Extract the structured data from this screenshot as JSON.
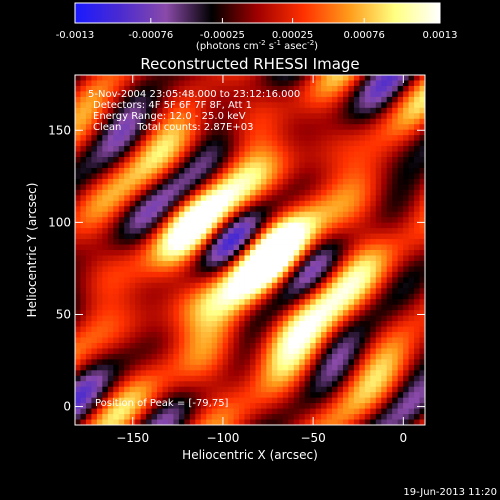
{
  "chart_data": {
    "type": "heatmap",
    "title": "Reconstructed RHESSI Image",
    "colorbar": {
      "colors": [
        "#1a1aff",
        "#4b2bd0",
        "#8a4aa8",
        "#000000",
        "#a00000",
        "#ff3000",
        "#ff9a1a",
        "#ffff80",
        "#ffffff"
      ],
      "ticks": [
        "-0.0013",
        "-0.00076",
        "-0.00025",
        "0.00025",
        "0.00076",
        "0.0013"
      ],
      "range": [
        -0.0013,
        0.0013
      ],
      "label_main": "(photons cm",
      "label_exp1": "-2",
      "label_mid": " s",
      "label_exp2": "-1",
      "label_mid2": " asec",
      "label_exp3": "-2",
      "label_end": ")"
    },
    "annotations": [
      "5-Nov-2004 23:05:48.000 to 23:12:16.000",
      "Detectors: 4F 5F 6F 7F 8F, Att 1",
      "Energy Range: 12.0 - 25.0 keV",
      "Clean     Total counts: 2.87E+03"
    ],
    "peak_label": "Position of Peak = [-79,75]",
    "xlabel": "Heliocentric X (arcsec)",
    "ylabel": "Heliocentric Y (arcsec)",
    "xlim": [
      -182,
      12
    ],
    "ylim": [
      -10,
      180
    ],
    "xticks": [
      -150,
      -100,
      -50,
      0
    ],
    "yticks": [
      0,
      50,
      100,
      150
    ],
    "peak": [
      -79,
      75
    ]
  },
  "footer": {
    "date": "19-Jun-2013 11:20"
  }
}
